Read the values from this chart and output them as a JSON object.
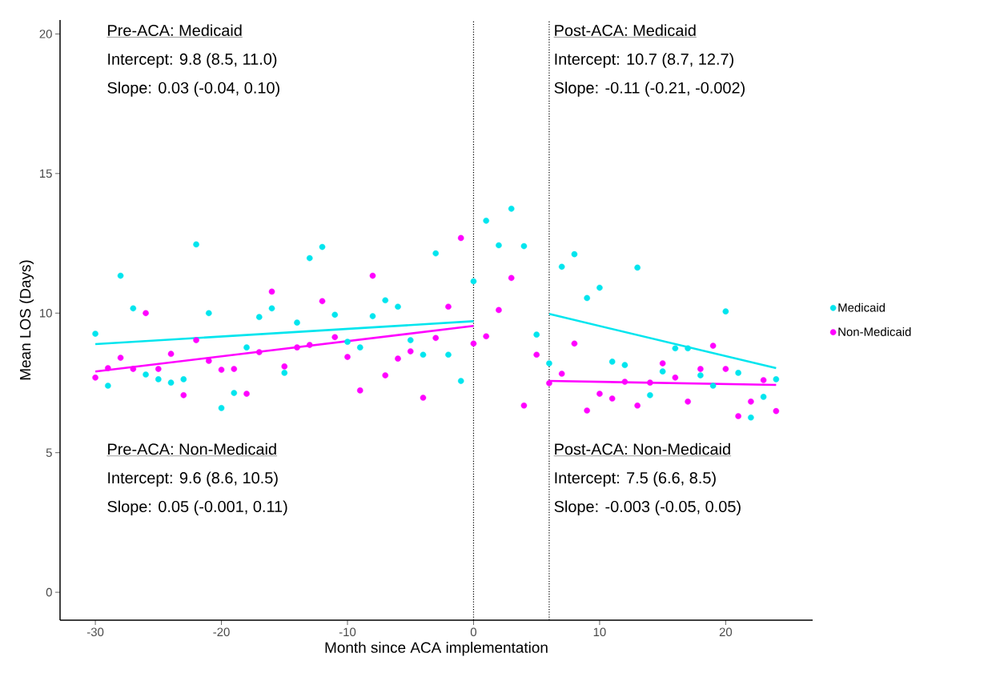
{
  "chart_data": {
    "type": "scatter",
    "xlabel": "Month since ACA implementation",
    "ylabel": "Mean LOS (Days)",
    "xlim": [
      -32.8,
      26.9
    ],
    "ylim": [
      -1,
      20.5
    ],
    "xticks": [
      -30,
      -20,
      -10,
      0,
      10,
      20
    ],
    "yticks": [
      0,
      5,
      10,
      15,
      20
    ],
    "grid": false,
    "legend": "right",
    "series": [
      {
        "name": "Medicaid",
        "marker": "circle",
        "color": "#00e5ee",
        "x": [
          -30,
          -29,
          -28,
          -27,
          -26,
          -25,
          -24,
          -23,
          -22,
          -21,
          -20,
          -19,
          -18,
          -17,
          -16,
          -15,
          -14,
          -13,
          -12,
          -11,
          -10,
          -9,
          -8,
          -7,
          -6,
          -5,
          -4,
          -3,
          -2,
          -1,
          0,
          1,
          2,
          3,
          4,
          5,
          6,
          7,
          8,
          9,
          10,
          11,
          12,
          13,
          14,
          15,
          16,
          17,
          18,
          19,
          20,
          21,
          22,
          23,
          24
        ],
        "values": [
          9.26,
          7.4,
          11.34,
          10.17,
          7.8,
          7.63,
          7.51,
          7.63,
          12.46,
          10.0,
          6.6,
          7.14,
          8.77,
          9.86,
          10.17,
          7.86,
          9.66,
          11.97,
          12.37,
          9.94,
          8.97,
          8.77,
          9.89,
          10.46,
          10.23,
          9.03,
          8.51,
          12.14,
          8.51,
          7.57,
          11.14,
          13.31,
          12.43,
          13.74,
          12.4,
          9.23,
          8.2,
          11.66,
          12.11,
          10.54,
          10.91,
          8.26,
          8.14,
          11.63,
          7.06,
          7.91,
          8.74,
          8.74,
          7.77,
          7.4,
          10.06,
          7.86,
          6.26,
          7.0,
          7.63
        ]
      },
      {
        "name": "Non-Medicaid",
        "marker": "circle",
        "color": "#ff00ff",
        "x": [
          -30,
          -29,
          -28,
          -27,
          -26,
          -25,
          -24,
          -23,
          -22,
          -21,
          -20,
          -19,
          -18,
          -17,
          -16,
          -15,
          -14,
          -13,
          -12,
          -11,
          -10,
          -9,
          -8,
          -7,
          -6,
          -5,
          -4,
          -3,
          -2,
          -1,
          0,
          1,
          2,
          3,
          4,
          5,
          6,
          7,
          8,
          9,
          10,
          11,
          12,
          13,
          14,
          15,
          16,
          17,
          18,
          19,
          20,
          21,
          22,
          23,
          24
        ],
        "values": [
          7.69,
          8.03,
          8.4,
          8.0,
          10.0,
          8.0,
          8.54,
          7.06,
          9.03,
          8.29,
          7.97,
          8.0,
          7.11,
          8.6,
          10.77,
          8.09,
          8.77,
          8.86,
          10.43,
          9.14,
          8.43,
          7.23,
          11.34,
          7.77,
          8.37,
          8.63,
          6.97,
          9.11,
          10.23,
          12.69,
          8.91,
          9.17,
          10.11,
          11.26,
          6.69,
          8.51,
          7.49,
          7.83,
          8.91,
          6.51,
          7.11,
          6.94,
          7.54,
          6.69,
          7.51,
          8.2,
          7.69,
          6.83,
          8.0,
          8.83,
          8.0,
          6.31,
          6.83,
          7.6,
          6.49
        ]
      },
      {
        "type": "line",
        "marker": "none",
        "color": "#00e5ee",
        "x": [
          -30,
          0
        ],
        "values": [
          8.89,
          9.71
        ]
      },
      {
        "type": "line",
        "marker": "none",
        "color": "#ff00ff",
        "x": [
          -30,
          0
        ],
        "values": [
          7.91,
          9.54
        ]
      },
      {
        "type": "line",
        "marker": "none",
        "color": "#00e5ee",
        "x": [
          6,
          24
        ],
        "values": [
          9.97,
          8.03
        ]
      },
      {
        "type": "line",
        "marker": "none",
        "color": "#ff00ff",
        "x": [
          6,
          24
        ],
        "values": [
          7.57,
          7.43
        ]
      }
    ],
    "ref_lines": [
      {
        "axis": "x",
        "value": 0,
        "color": "#000000",
        "line_style": "dotted"
      },
      {
        "axis": "x",
        "value": 6,
        "color": "#000000",
        "line_style": "dotted"
      }
    ],
    "annotations": [
      "Pre-ACA: Medicaid",
      "Intercept: 9.8 (8.5, 11.0)",
      "Slope: 0.03 (-0.04, 0.10)",
      "Post-ACA: Medicaid",
      "Intercept: 10.7 (8.7, 12.7)",
      "Slope: -0.11 (-0.21, -0.002)",
      "Pre-ACA: Non-Medicaid",
      "Intercept: 9.6 (8.6, 10.5)",
      "Slope: 0.05 (-0.001, 0.11)",
      "Post-ACA: Non-Medicaid",
      "Intercept: 7.5 (6.6, 8.5)",
      "Slope: -0.003 (-0.05, 0.05)"
    ]
  }
}
